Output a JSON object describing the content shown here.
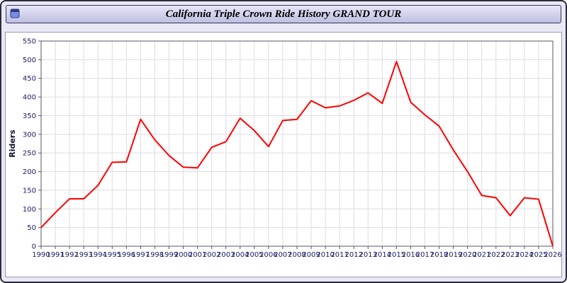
{
  "window": {
    "title": "California Triple Crown Ride History GRAND TOUR"
  },
  "colors": {
    "page_background": "#e9e9f6",
    "titlebar_background": "#bfbfe2",
    "plot_background": "#ffffff",
    "gridline": "#dcdce4",
    "axis": "#55556a",
    "tick_label": "#1a1a66",
    "line": "#ff0000"
  },
  "chart_data": {
    "type": "line",
    "title": "California Triple Crown Ride History GRAND TOUR",
    "xlabel": "",
    "ylabel": "Riders",
    "ylim": [
      0,
      550
    ],
    "ytick_step": 50,
    "grid": true,
    "legend_position": "none",
    "x": [
      1990,
      1991,
      1992,
      1993,
      1994,
      1995,
      1996,
      1997,
      1998,
      1999,
      2000,
      2001,
      2002,
      2003,
      2004,
      2005,
      2006,
      2007,
      2008,
      2009,
      2010,
      2011,
      2012,
      2013,
      2014,
      2015,
      2016,
      2017,
      2018,
      2019,
      2020,
      2021,
      2022,
      2023,
      2024,
      2025,
      2026
    ],
    "series": [
      {
        "name": "Riders",
        "color": "#ff0000",
        "values": [
          50,
          90,
          127,
          127,
          163,
          225,
          226,
          340,
          285,
          243,
          212,
          210,
          265,
          280,
          343,
          310,
          267,
          337,
          340,
          390,
          371,
          376,
          391,
          411,
          383,
          495,
          386,
          352,
          322,
          258,
          200,
          136,
          130,
          82,
          130,
          126,
          0
        ]
      }
    ]
  }
}
